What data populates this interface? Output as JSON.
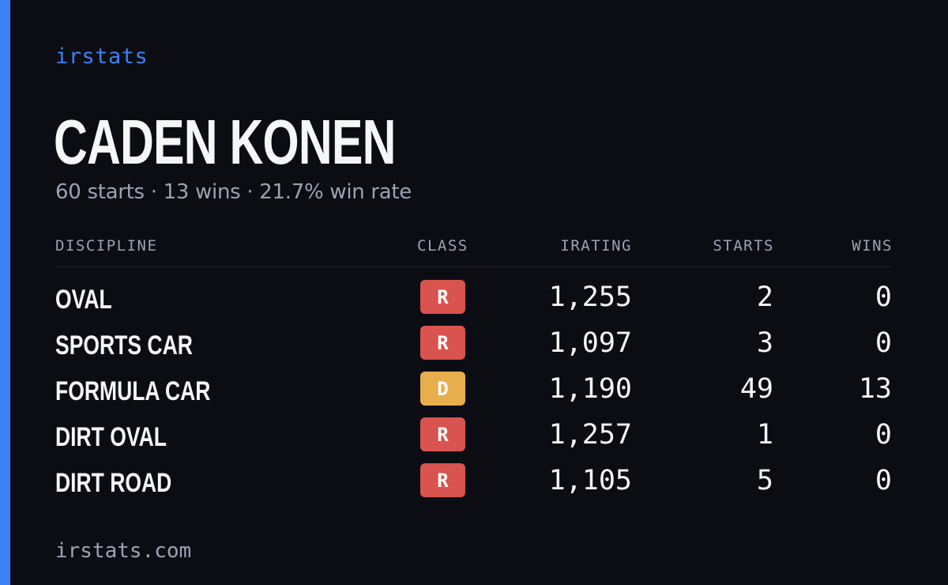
{
  "brand": "irstats",
  "driver_name": "CADEN KONEN",
  "summary": "60 starts · 13 wins · 21.7% win rate",
  "colors": {
    "background": "#0b0d13",
    "accent": "#3b82f6",
    "class_r": "#d9534f",
    "class_d": "#e8ad4d",
    "text": "#f5f6f8",
    "muted": "#9aa3b2"
  },
  "table": {
    "headers": {
      "discipline": "DISCIPLINE",
      "class": "CLASS",
      "irating": "IRATING",
      "starts": "STARTS",
      "wins": "WINS"
    },
    "rows": [
      {
        "discipline": "OVAL",
        "class": "R",
        "irating": "1,255",
        "starts": "2",
        "wins": "0"
      },
      {
        "discipline": "SPORTS CAR",
        "class": "R",
        "irating": "1,097",
        "starts": "3",
        "wins": "0"
      },
      {
        "discipline": "FORMULA CAR",
        "class": "D",
        "irating": "1,190",
        "starts": "49",
        "wins": "13"
      },
      {
        "discipline": "DIRT OVAL",
        "class": "R",
        "irating": "1,257",
        "starts": "1",
        "wins": "0"
      },
      {
        "discipline": "DIRT ROAD",
        "class": "R",
        "irating": "1,105",
        "starts": "5",
        "wins": "0"
      }
    ]
  },
  "footer": "irstats.com"
}
